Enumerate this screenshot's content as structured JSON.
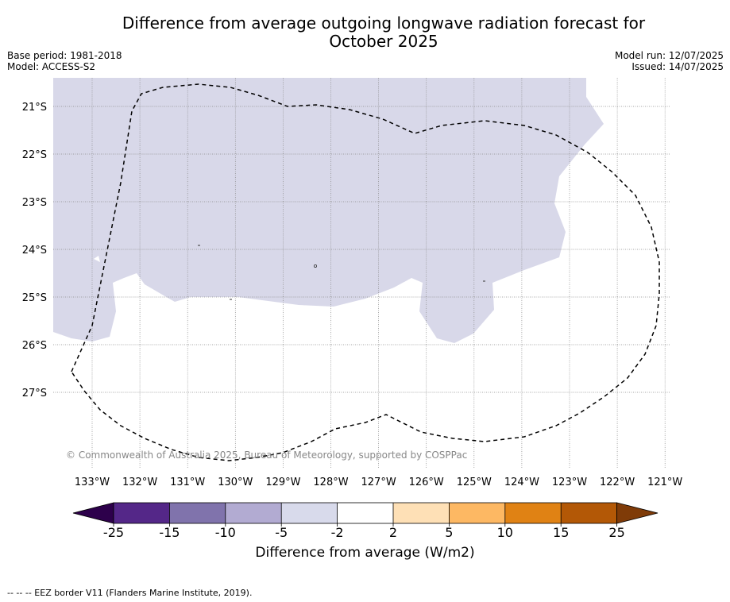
{
  "title_line1": "Difference from average outgoing longwave radiation forecast for",
  "title_line2": "October 2025",
  "base_period": "Base period: 1981-2018",
  "model": "Model: ACCESS-S2",
  "model_run": "Model run: 12/07/2025",
  "issued": "Issued: 14/07/2025",
  "copyright": "© Commonwealth of Australia 2025, Bureau of Meteorology, supported by COSPPac",
  "map": {
    "lat_labels": [
      "21°S",
      "22°S",
      "23°S",
      "24°S",
      "25°S",
      "26°S",
      "27°S"
    ],
    "lon_labels": [
      "133°W",
      "132°W",
      "131°W",
      "130°W",
      "129°W",
      "128°W",
      "127°W",
      "126°W",
      "125°W",
      "124°W",
      "123°W",
      "122°W",
      "121°W"
    ],
    "anomaly_fill_color": "#d8d8e9",
    "anomaly_fill_class": "-5 to -2",
    "ocean_color": "#ffffff"
  },
  "colorbar": {
    "title": "Difference from average (W/m2)",
    "tick_labels": [
      "-25",
      "-15",
      "-10",
      "-5",
      "-2",
      "2",
      "5",
      "10",
      "15",
      "25"
    ],
    "colors": [
      "#2d004b",
      "#542788",
      "#8073ac",
      "#b2abd2",
      "#d8daeb",
      "#ffffff",
      "#fee0b6",
      "#fdb863",
      "#e08214",
      "#b35806",
      "#7f3b08"
    ]
  },
  "footnote": "--  --  -- EEZ border V11 (Flanders Marine Institute, 2019)."
}
